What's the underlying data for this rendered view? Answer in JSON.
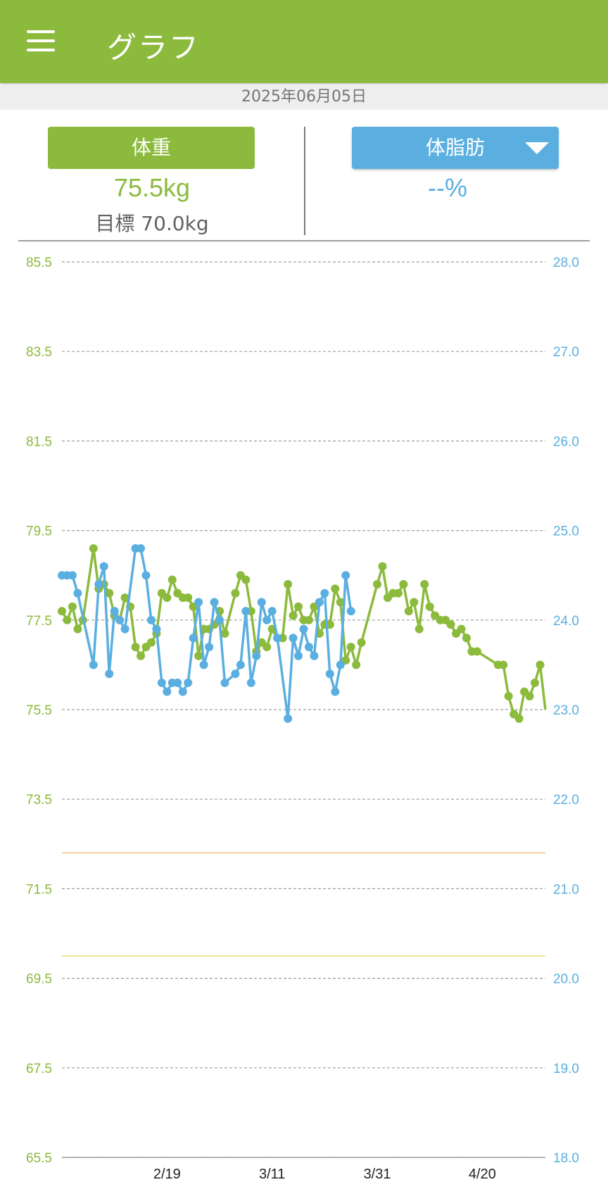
{
  "app_bar": {
    "title": "グラフ",
    "menu_icon": "hamburger-menu-icon"
  },
  "date": "2025年06月05日",
  "weight_panel": {
    "label": "体重",
    "value": "75.5kg",
    "goal": "目標 70.0kg",
    "color": "#8bba3c"
  },
  "fat_panel": {
    "label": "体脂肪",
    "value": "--%",
    "dropdown_icon": "caret-down-icon",
    "color": "#5aafe0"
  },
  "colors": {
    "weight": "#8bba3c",
    "fat": "#5aafe0",
    "goal_line": "#f4c27a",
    "target_line": "#e8e07a"
  },
  "chart_data": {
    "type": "line",
    "x_ticks": [
      "2/19",
      "3/11",
      "3/31",
      "4/20"
    ],
    "x_tick_days": [
      20,
      40,
      60,
      80
    ],
    "x_range_days": [
      0,
      92
    ],
    "y_left": {
      "ticks": [
        "85.5",
        "83.5",
        "81.5",
        "79.5",
        "77.5",
        "75.5",
        "73.5",
        "71.5",
        "69.5",
        "67.5",
        "65.5"
      ],
      "ylim": [
        65.5,
        85.5
      ],
      "unit": "kg"
    },
    "y_right": {
      "ticks": [
        "28.0",
        "27.0",
        "26.0",
        "25.0",
        "24.0",
        "23.0",
        "22.0",
        "21.0",
        "20.0",
        "19.0",
        "18.0"
      ],
      "ylim": [
        18.0,
        28.0
      ],
      "unit": "%"
    },
    "grid": true,
    "reference_lines": [
      {
        "axis": "left",
        "value": 72.3
      },
      {
        "axis": "left",
        "value": 70.0
      }
    ],
    "series": [
      {
        "axis": "left",
        "points": [
          [
            0,
            77.7
          ],
          [
            1,
            77.5
          ],
          [
            2,
            77.8
          ],
          [
            3,
            77.3
          ],
          [
            4,
            77.5
          ],
          [
            6,
            79.1
          ],
          [
            7,
            78.2
          ],
          [
            8,
            78.3
          ],
          [
            9,
            78.1
          ],
          [
            10,
            77.6
          ],
          [
            11,
            77.5
          ],
          [
            12,
            78.0
          ],
          [
            13,
            77.8
          ],
          [
            14,
            76.9
          ],
          [
            15,
            76.7
          ],
          [
            16,
            76.9
          ],
          [
            17,
            77.0
          ],
          [
            18,
            77.2
          ],
          [
            19,
            78.1
          ],
          [
            20,
            78.0
          ],
          [
            21,
            78.4
          ],
          [
            22,
            78.1
          ],
          [
            23,
            78.0
          ],
          [
            24,
            78.0
          ],
          [
            25,
            77.8
          ],
          [
            26,
            76.7
          ],
          [
            27,
            77.3
          ],
          [
            28,
            77.3
          ],
          [
            29,
            77.4
          ],
          [
            30,
            77.7
          ],
          [
            31,
            77.2
          ],
          [
            33,
            78.1
          ],
          [
            34,
            78.5
          ],
          [
            35,
            78.4
          ],
          [
            36,
            77.7
          ],
          [
            37,
            76.8
          ],
          [
            38,
            77.0
          ],
          [
            39,
            76.9
          ],
          [
            40,
            77.3
          ],
          [
            41,
            77.1
          ],
          [
            42,
            77.1
          ],
          [
            43,
            78.3
          ],
          [
            44,
            77.6
          ],
          [
            45,
            77.8
          ],
          [
            46,
            77.5
          ],
          [
            47,
            77.5
          ],
          [
            48,
            77.8
          ],
          [
            49,
            77.2
          ],
          [
            50,
            77.4
          ],
          [
            51,
            77.4
          ],
          [
            52,
            78.2
          ],
          [
            53,
            77.9
          ],
          [
            54,
            76.6
          ],
          [
            55,
            76.9
          ],
          [
            56,
            76.5
          ],
          [
            57,
            77.0
          ],
          [
            60,
            78.3
          ],
          [
            61,
            78.7
          ],
          [
            62,
            78.0
          ],
          [
            63,
            78.1
          ],
          [
            64,
            78.1
          ],
          [
            65,
            78.3
          ],
          [
            66,
            77.7
          ],
          [
            67,
            77.9
          ],
          [
            68,
            77.3
          ],
          [
            69,
            78.3
          ],
          [
            70,
            77.8
          ],
          [
            71,
            77.6
          ],
          [
            72,
            77.5
          ],
          [
            73,
            77.5
          ],
          [
            74,
            77.4
          ],
          [
            75,
            77.2
          ],
          [
            76,
            77.3
          ],
          [
            77,
            77.1
          ],
          [
            78,
            76.8
          ],
          [
            79,
            76.8
          ],
          [
            83,
            76.5
          ],
          [
            84,
            76.5
          ],
          [
            85,
            75.8
          ],
          [
            86,
            75.4
          ],
          [
            87,
            75.3
          ],
          [
            88,
            75.9
          ],
          [
            89,
            75.8
          ],
          [
            90,
            76.1
          ],
          [
            91,
            76.5
          ],
          [
            92,
            75.5
          ]
        ]
      },
      {
        "axis": "right",
        "points": [
          [
            0,
            24.5
          ],
          [
            1,
            24.5
          ],
          [
            2,
            24.5
          ],
          [
            3,
            24.3
          ],
          [
            6,
            23.5
          ],
          [
            7,
            24.4
          ],
          [
            8,
            24.6
          ],
          [
            9,
            23.4
          ],
          [
            10,
            24.1
          ],
          [
            11,
            24.0
          ],
          [
            12,
            23.9
          ],
          [
            14,
            24.8
          ],
          [
            15,
            24.8
          ],
          [
            16,
            24.5
          ],
          [
            17,
            24.0
          ],
          [
            18,
            23.9
          ],
          [
            19,
            23.3
          ],
          [
            20,
            23.2
          ],
          [
            21,
            23.3
          ],
          [
            22,
            23.3
          ],
          [
            23,
            23.2
          ],
          [
            24,
            23.3
          ],
          [
            25,
            23.8
          ],
          [
            26,
            24.2
          ],
          [
            27,
            23.5
          ],
          [
            28,
            23.7
          ],
          [
            29,
            24.2
          ],
          [
            30,
            24.0
          ],
          [
            31,
            23.3
          ],
          [
            33,
            23.4
          ],
          [
            34,
            23.5
          ],
          [
            35,
            24.1
          ],
          [
            36,
            23.3
          ],
          [
            37,
            23.6
          ],
          [
            38,
            24.2
          ],
          [
            39,
            24.0
          ],
          [
            40,
            24.1
          ],
          [
            41,
            23.8
          ],
          [
            43,
            22.9
          ],
          [
            44,
            23.8
          ],
          [
            45,
            23.6
          ],
          [
            46,
            23.9
          ],
          [
            47,
            23.7
          ],
          [
            48,
            23.6
          ],
          [
            49,
            24.2
          ],
          [
            50,
            24.3
          ],
          [
            51,
            23.4
          ],
          [
            52,
            23.2
          ],
          [
            53,
            23.5
          ],
          [
            54,
            24.5
          ],
          [
            55,
            24.1
          ]
        ]
      }
    ]
  }
}
